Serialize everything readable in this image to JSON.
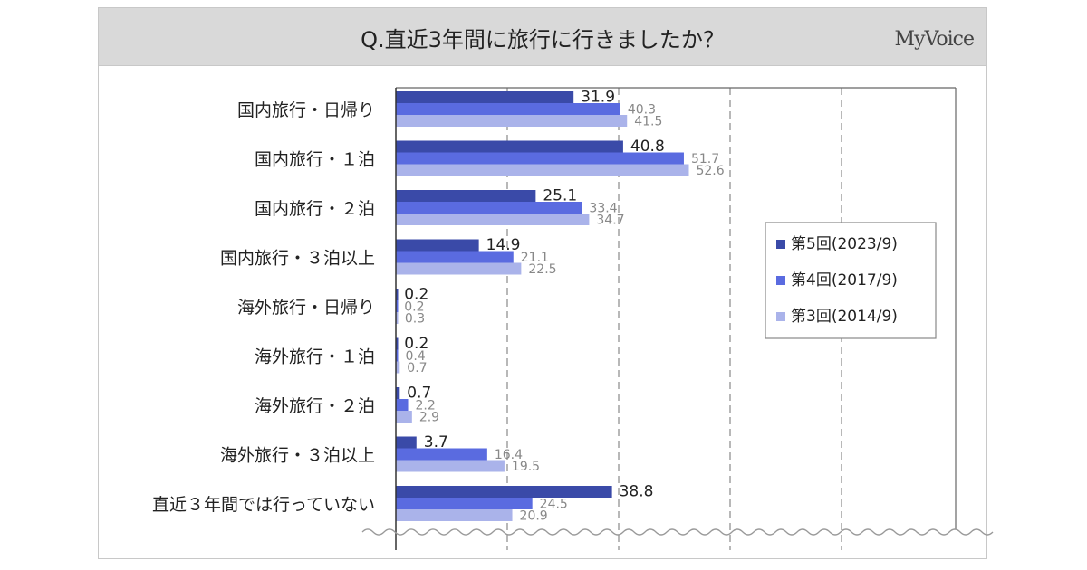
{
  "header": {
    "title": "Q.直近3年間に旅行に行きましたか？",
    "brand": "MyVoice"
  },
  "colors": {
    "series": [
      "#3a4aa8",
      "#5a6be0",
      "#aab3ea"
    ],
    "value_labels": [
      "#222222",
      "#888888",
      "#888888"
    ]
  },
  "chart_data": {
    "type": "bar",
    "orientation": "horizontal",
    "categories": [
      "国内旅行・日帰り",
      "国内旅行・１泊",
      "国内旅行・２泊",
      "国内旅行・３泊以上",
      "海外旅行・日帰り",
      "海外旅行・１泊",
      "海外旅行・２泊",
      "海外旅行・３泊以上",
      "直近３年間では行っていない"
    ],
    "series": [
      {
        "name": "第5回(2023/9)",
        "values": [
          31.9,
          40.8,
          25.1,
          14.9,
          0.2,
          0.2,
          0.7,
          3.7,
          38.8
        ]
      },
      {
        "name": "第4回(2017/9)",
        "values": [
          40.3,
          51.7,
          33.4,
          21.1,
          0.2,
          0.4,
          2.2,
          16.4,
          24.5
        ]
      },
      {
        "name": "第3回(2014/9)",
        "values": [
          41.5,
          52.6,
          34.7,
          22.5,
          0.3,
          0.7,
          2.9,
          19.5,
          20.9
        ]
      }
    ],
    "xlim": [
      0,
      100
    ],
    "grid": true,
    "legend_position": "right"
  }
}
